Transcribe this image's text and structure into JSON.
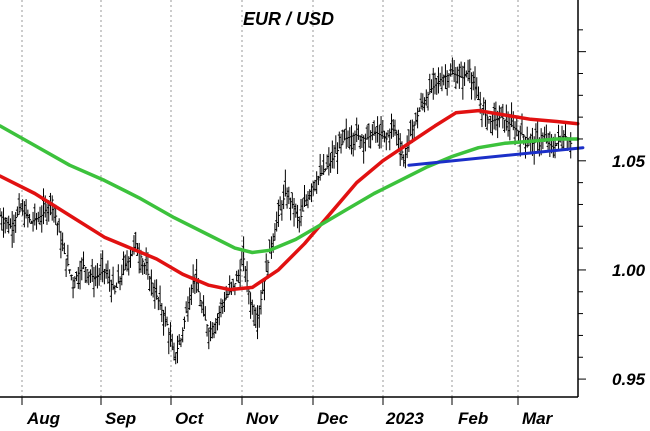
{
  "chart_data": {
    "type": "candlestick",
    "title": "EUR / USD",
    "xlabel": "",
    "ylabel": "",
    "x_tick_labels": [
      "Aug",
      "Sep",
      "Oct",
      "Nov",
      "Dec",
      "2023",
      "Feb",
      "Mar"
    ],
    "y_tick_labels": [
      "0.95",
      "1.00",
      "1.05"
    ],
    "y_ticks": [
      0.95,
      1.0,
      1.05
    ],
    "ylim": [
      0.945,
      1.12
    ],
    "grid": "vertical dotted at month starts",
    "y_axis_position": "right",
    "price_path": [
      [
        0,
        1.025
      ],
      [
        6,
        1.02
      ],
      [
        12,
        1.028
      ],
      [
        18,
        1.022
      ],
      [
        24,
        1.025
      ],
      [
        30,
        1.032
      ],
      [
        36,
        1.01
      ],
      [
        42,
        0.995
      ],
      [
        48,
        1.002
      ],
      [
        54,
        0.996
      ],
      [
        60,
        1.0
      ],
      [
        66,
        0.99
      ],
      [
        72,
        1.002
      ],
      [
        78,
        1.012
      ],
      [
        84,
        1.0
      ],
      [
        90,
        0.988
      ],
      [
        96,
        0.975
      ],
      [
        100,
        0.96
      ],
      [
        104,
        0.968
      ],
      [
        108,
        0.985
      ],
      [
        112,
        0.998
      ],
      [
        116,
        0.982
      ],
      [
        120,
        0.972
      ],
      [
        124,
        0.976
      ],
      [
        128,
        0.985
      ],
      [
        132,
        0.99
      ],
      [
        136,
        0.995
      ],
      [
        140,
        1.005
      ],
      [
        144,
        0.985
      ],
      [
        148,
        0.978
      ],
      [
        152,
        0.995
      ],
      [
        156,
        1.012
      ],
      [
        160,
        1.025
      ],
      [
        164,
        1.035
      ],
      [
        168,
        1.03
      ],
      [
        172,
        1.022
      ],
      [
        176,
        1.032
      ],
      [
        180,
        1.04
      ],
      [
        186,
        1.045
      ],
      [
        192,
        1.052
      ],
      [
        198,
        1.06
      ],
      [
        204,
        1.062
      ],
      [
        210,
        1.06
      ],
      [
        216,
        1.063
      ],
      [
        222,
        1.06
      ],
      [
        226,
        1.066
      ],
      [
        230,
        1.058
      ],
      [
        232,
        1.05
      ],
      [
        236,
        1.062
      ],
      [
        242,
        1.075
      ],
      [
        248,
        1.083
      ],
      [
        254,
        1.088
      ],
      [
        260,
        1.09
      ],
      [
        266,
        1.088
      ],
      [
        270,
        1.092
      ],
      [
        274,
        1.08
      ],
      [
        278,
        1.072
      ],
      [
        282,
        1.068
      ],
      [
        288,
        1.07
      ],
      [
        294,
        1.066
      ],
      [
        300,
        1.062
      ],
      [
        306,
        1.058
      ],
      [
        312,
        1.06
      ],
      [
        318,
        1.056
      ],
      [
        324,
        1.062
      ],
      [
        328,
        1.058
      ]
    ],
    "series": [
      {
        "name": "",
        "color": "#e11111",
        "points": [
          [
            0,
            1.043
          ],
          [
            20,
            1.035
          ],
          [
            40,
            1.025
          ],
          [
            60,
            1.015
          ],
          [
            75,
            1.01
          ],
          [
            90,
            1.005
          ],
          [
            105,
            0.998
          ],
          [
            120,
            0.993
          ],
          [
            132,
            0.991
          ],
          [
            145,
            0.992
          ],
          [
            160,
            1.0
          ],
          [
            175,
            1.012
          ],
          [
            190,
            1.026
          ],
          [
            205,
            1.04
          ],
          [
            220,
            1.05
          ],
          [
            235,
            1.058
          ],
          [
            250,
            1.066
          ],
          [
            262,
            1.072
          ],
          [
            275,
            1.073
          ],
          [
            290,
            1.071
          ],
          [
            305,
            1.069
          ],
          [
            320,
            1.068
          ],
          [
            332,
            1.067
          ]
        ]
      },
      {
        "name": "",
        "color": "#3cc23c",
        "points": [
          [
            0,
            1.066
          ],
          [
            20,
            1.057
          ],
          [
            40,
            1.048
          ],
          [
            60,
            1.041
          ],
          [
            80,
            1.033
          ],
          [
            100,
            1.024
          ],
          [
            120,
            1.016
          ],
          [
            135,
            1.01
          ],
          [
            145,
            1.008
          ],
          [
            155,
            1.009
          ],
          [
            170,
            1.014
          ],
          [
            185,
            1.021
          ],
          [
            200,
            1.028
          ],
          [
            215,
            1.035
          ],
          [
            230,
            1.041
          ],
          [
            245,
            1.047
          ],
          [
            260,
            1.052
          ],
          [
            275,
            1.056
          ],
          [
            290,
            1.058
          ],
          [
            305,
            1.059
          ],
          [
            320,
            1.06
          ],
          [
            332,
            1.06
          ]
        ]
      },
      {
        "name": "",
        "color": "#1b2fc8",
        "points": [
          [
            235,
            1.048
          ],
          [
            335,
            1.056
          ]
        ]
      }
    ]
  }
}
